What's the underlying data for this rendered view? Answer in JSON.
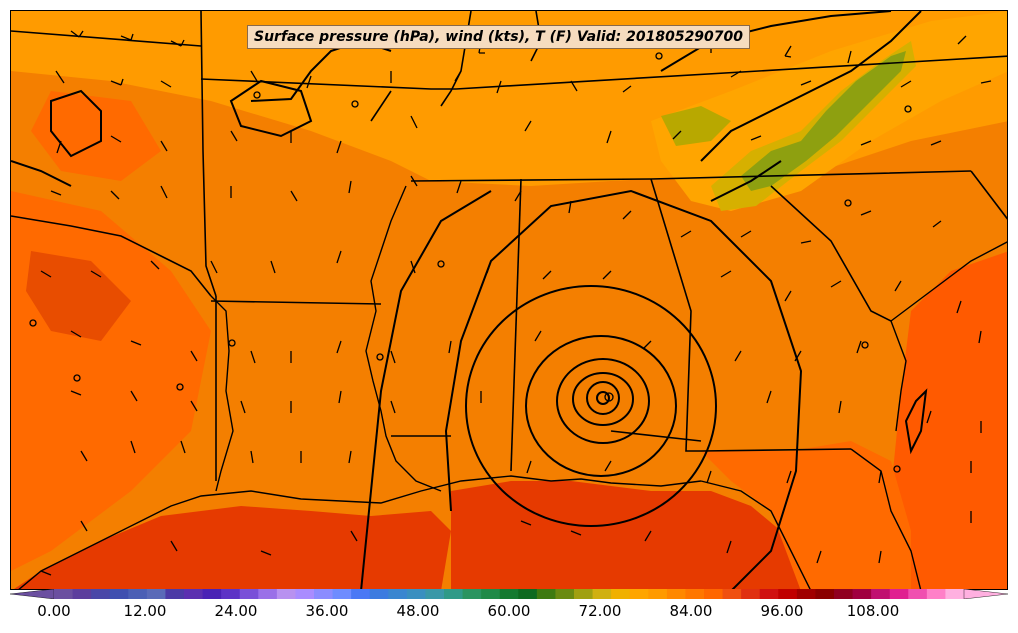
{
  "title": "Surface pressure (hPa), wind (kts), T (F) Valid: 201805290700",
  "colorbar": {
    "min": 0,
    "max": 120,
    "labels": [
      "0.00",
      "12.00",
      "24.00",
      "36.00",
      "48.00",
      "60.00",
      "72.00",
      "84.00",
      "96.00",
      "108.00"
    ],
    "colors": [
      "#6b4fa0",
      "#5c3e9d",
      "#4a47a8",
      "#3f4fb0",
      "#4b5fb5",
      "#5a6ab8",
      "#4c3aa6",
      "#5b2fb0",
      "#4a22b5",
      "#5d33c6",
      "#7a50d8",
      "#9a70e8",
      "#b891f0",
      "#a98cff",
      "#8b8cff",
      "#6e8cff",
      "#4a78f5",
      "#3b7be0",
      "#3a86d0",
      "#3a8fc0",
      "#3a98a8",
      "#2f9a88",
      "#2a9460",
      "#1f8a48",
      "#157a30",
      "#0e6a20",
      "#3e7a10",
      "#6a8a10",
      "#a0a010",
      "#d0b010",
      "#f0b000",
      "#ffa500",
      "#ff9a00",
      "#ff8800",
      "#ff7700",
      "#ff6600",
      "#f05010",
      "#e03010",
      "#d01010",
      "#c00000",
      "#a00000",
      "#8a0000",
      "#900020",
      "#a00040",
      "#c01070",
      "#e02090",
      "#f050b0",
      "#ff80c8",
      "#ffb0e0"
    ]
  },
  "map_colors": {
    "land_base": "#f47f00",
    "warm": "#ff6a00",
    "hot": "#e84a00",
    "gulf": "#e83a00",
    "cool": "#ffa300",
    "mountain_green": "#8aa010",
    "mountain_yellow": "#d4b000",
    "lines": "#000000"
  }
}
